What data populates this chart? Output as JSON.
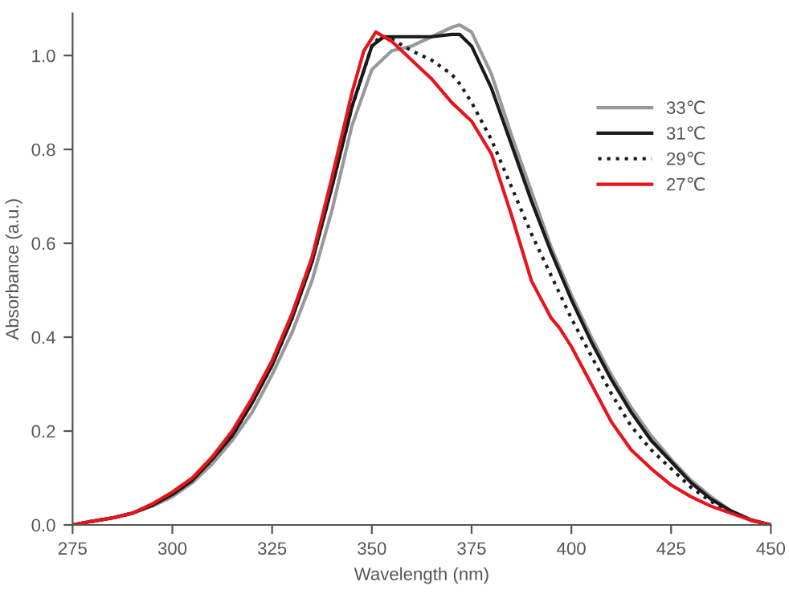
{
  "chart_data": {
    "type": "line",
    "xlabel": "Wavelength (nm)",
    "ylabel": "Absorbance (a.u.)",
    "xlim": [
      275,
      450
    ],
    "xticks": [
      275,
      300,
      325,
      350,
      375,
      400,
      425,
      450
    ],
    "ylim": [
      0,
      1.09
    ],
    "yticks": [
      {
        "value": 0,
        "label": "0.0"
      },
      {
        "value": 0.2,
        "label": "0.2"
      },
      {
        "value": 0.4,
        "label": "0.4"
      },
      {
        "value": 0.6,
        "label": "0.6"
      },
      {
        "value": 0.8,
        "label": "0.8"
      },
      {
        "value": 1.0,
        "label": "1.0"
      }
    ],
    "grid": false,
    "legend": "top right",
    "marker": "none",
    "series": [
      {
        "name": "33℃",
        "color": "#999999",
        "line_style": "solid",
        "x": [
          275,
          280,
          285,
          290,
          295,
          300,
          305,
          310,
          315,
          320,
          325,
          330,
          335,
          340,
          345,
          350,
          355,
          360,
          365,
          370,
          372,
          375,
          380,
          385,
          390,
          395,
          400,
          405,
          410,
          415,
          420,
          425,
          430,
          435,
          440,
          445,
          450
        ],
        "values": [
          0,
          0.008,
          0.015,
          0.025,
          0.04,
          0.06,
          0.09,
          0.13,
          0.18,
          0.24,
          0.32,
          0.41,
          0.52,
          0.67,
          0.85,
          0.97,
          1.01,
          1.02,
          1.04,
          1.06,
          1.065,
          1.05,
          0.96,
          0.83,
          0.71,
          0.59,
          0.49,
          0.4,
          0.32,
          0.25,
          0.19,
          0.14,
          0.095,
          0.06,
          0.03,
          0.012,
          0
        ]
      },
      {
        "name": "31℃",
        "color": "#1a1a1a",
        "line_style": "solid",
        "x": [
          275,
          280,
          285,
          290,
          295,
          300,
          305,
          310,
          315,
          320,
          325,
          330,
          335,
          340,
          345,
          350,
          353,
          360,
          365,
          370,
          372,
          375,
          380,
          385,
          390,
          395,
          400,
          405,
          410,
          415,
          420,
          425,
          430,
          435,
          440,
          445,
          450
        ],
        "values": [
          0,
          0.008,
          0.015,
          0.025,
          0.042,
          0.065,
          0.095,
          0.14,
          0.19,
          0.26,
          0.34,
          0.44,
          0.56,
          0.72,
          0.89,
          1.02,
          1.04,
          1.04,
          1.04,
          1.045,
          1.045,
          1.02,
          0.93,
          0.81,
          0.69,
          0.58,
          0.48,
          0.39,
          0.31,
          0.24,
          0.18,
          0.135,
          0.09,
          0.055,
          0.03,
          0.01,
          0
        ]
      },
      {
        "name": "29℃",
        "color": "#1a1a1a",
        "line_style": "dotted",
        "x": [
          275,
          280,
          285,
          290,
          295,
          300,
          305,
          310,
          315,
          320,
          325,
          330,
          335,
          340,
          345,
          350,
          352,
          355,
          360,
          365,
          370,
          372,
          375,
          380,
          385,
          390,
          395,
          400,
          405,
          410,
          415,
          420,
          425,
          430,
          435,
          440,
          445,
          450
        ],
        "values": [
          0,
          0.008,
          0.015,
          0.025,
          0.042,
          0.065,
          0.095,
          0.14,
          0.19,
          0.26,
          0.34,
          0.44,
          0.56,
          0.72,
          0.89,
          1.02,
          1.04,
          1.035,
          1.01,
          0.99,
          0.96,
          0.94,
          0.9,
          0.82,
          0.72,
          0.62,
          0.53,
          0.44,
          0.36,
          0.28,
          0.21,
          0.16,
          0.12,
          0.08,
          0.05,
          0.028,
          0.01,
          0
        ]
      },
      {
        "name": "27℃",
        "color": "#e8141c",
        "line_style": "solid",
        "x": [
          275,
          280,
          285,
          290,
          295,
          300,
          305,
          310,
          315,
          320,
          325,
          330,
          335,
          340,
          345,
          348,
          351,
          355,
          360,
          365,
          370,
          375,
          380,
          385,
          390,
          395,
          397,
          400,
          405,
          410,
          415,
          420,
          425,
          430,
          435,
          440,
          445,
          450
        ],
        "values": [
          0,
          0.008,
          0.015,
          0.025,
          0.045,
          0.07,
          0.1,
          0.145,
          0.2,
          0.27,
          0.35,
          0.45,
          0.57,
          0.74,
          0.92,
          1.01,
          1.05,
          1.03,
          0.99,
          0.95,
          0.9,
          0.86,
          0.79,
          0.66,
          0.52,
          0.44,
          0.42,
          0.38,
          0.3,
          0.22,
          0.16,
          0.12,
          0.085,
          0.06,
          0.04,
          0.025,
          0.01,
          0
        ]
      }
    ]
  }
}
